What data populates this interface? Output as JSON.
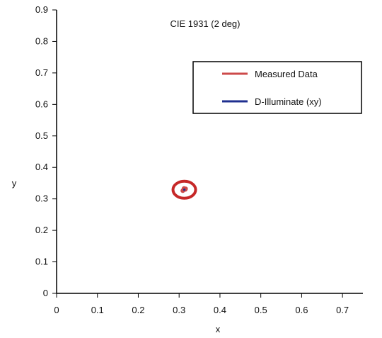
{
  "chart_data": {
    "type": "scatter",
    "title": "CIE 1931 (2 deg)",
    "xlabel": "x",
    "ylabel": "y",
    "xlim": [
      0,
      0.75
    ],
    "ylim": [
      0,
      0.9
    ],
    "xticks": [
      0,
      0.1,
      0.2,
      0.3,
      0.4,
      0.5,
      0.6,
      0.7
    ],
    "yticks": [
      0,
      0.1,
      0.2,
      0.3,
      0.4,
      0.5,
      0.6,
      0.7,
      0.8,
      0.9
    ],
    "xtick_labels": [
      "0",
      "0.1",
      "0.2",
      "0.3",
      "0.4",
      "0.5",
      "0.6",
      "0.7"
    ],
    "ytick_labels": [
      "0",
      "0.1",
      "0.2",
      "0.3",
      "0.4",
      "0.5",
      "0.6",
      "0.7",
      "0.8",
      "0.9"
    ],
    "grid": false,
    "legend": {
      "placement": "top-right",
      "entries": [
        {
          "label": "Measured Data",
          "color": "#cc4a4a"
        },
        {
          "label": "D-Illuminate (xy)",
          "color": "#1f2f8f"
        }
      ]
    },
    "series": [
      {
        "name": "Measured Data",
        "color": "#cc4a4a",
        "points": [
          {
            "x": 0.309,
            "y": 0.326
          },
          {
            "x": 0.311,
            "y": 0.329
          },
          {
            "x": 0.313,
            "y": 0.331
          },
          {
            "x": 0.315,
            "y": 0.33
          },
          {
            "x": 0.316,
            "y": 0.332
          },
          {
            "x": 0.312,
            "y": 0.333
          }
        ]
      },
      {
        "name": "D-Illuminate (xy)",
        "color": "#1f2f8f",
        "points": [
          {
            "x": 0.3127,
            "y": 0.329
          }
        ]
      }
    ],
    "highlight": {
      "x": 0.3127,
      "y": 0.329,
      "color": "#c62828"
    }
  }
}
